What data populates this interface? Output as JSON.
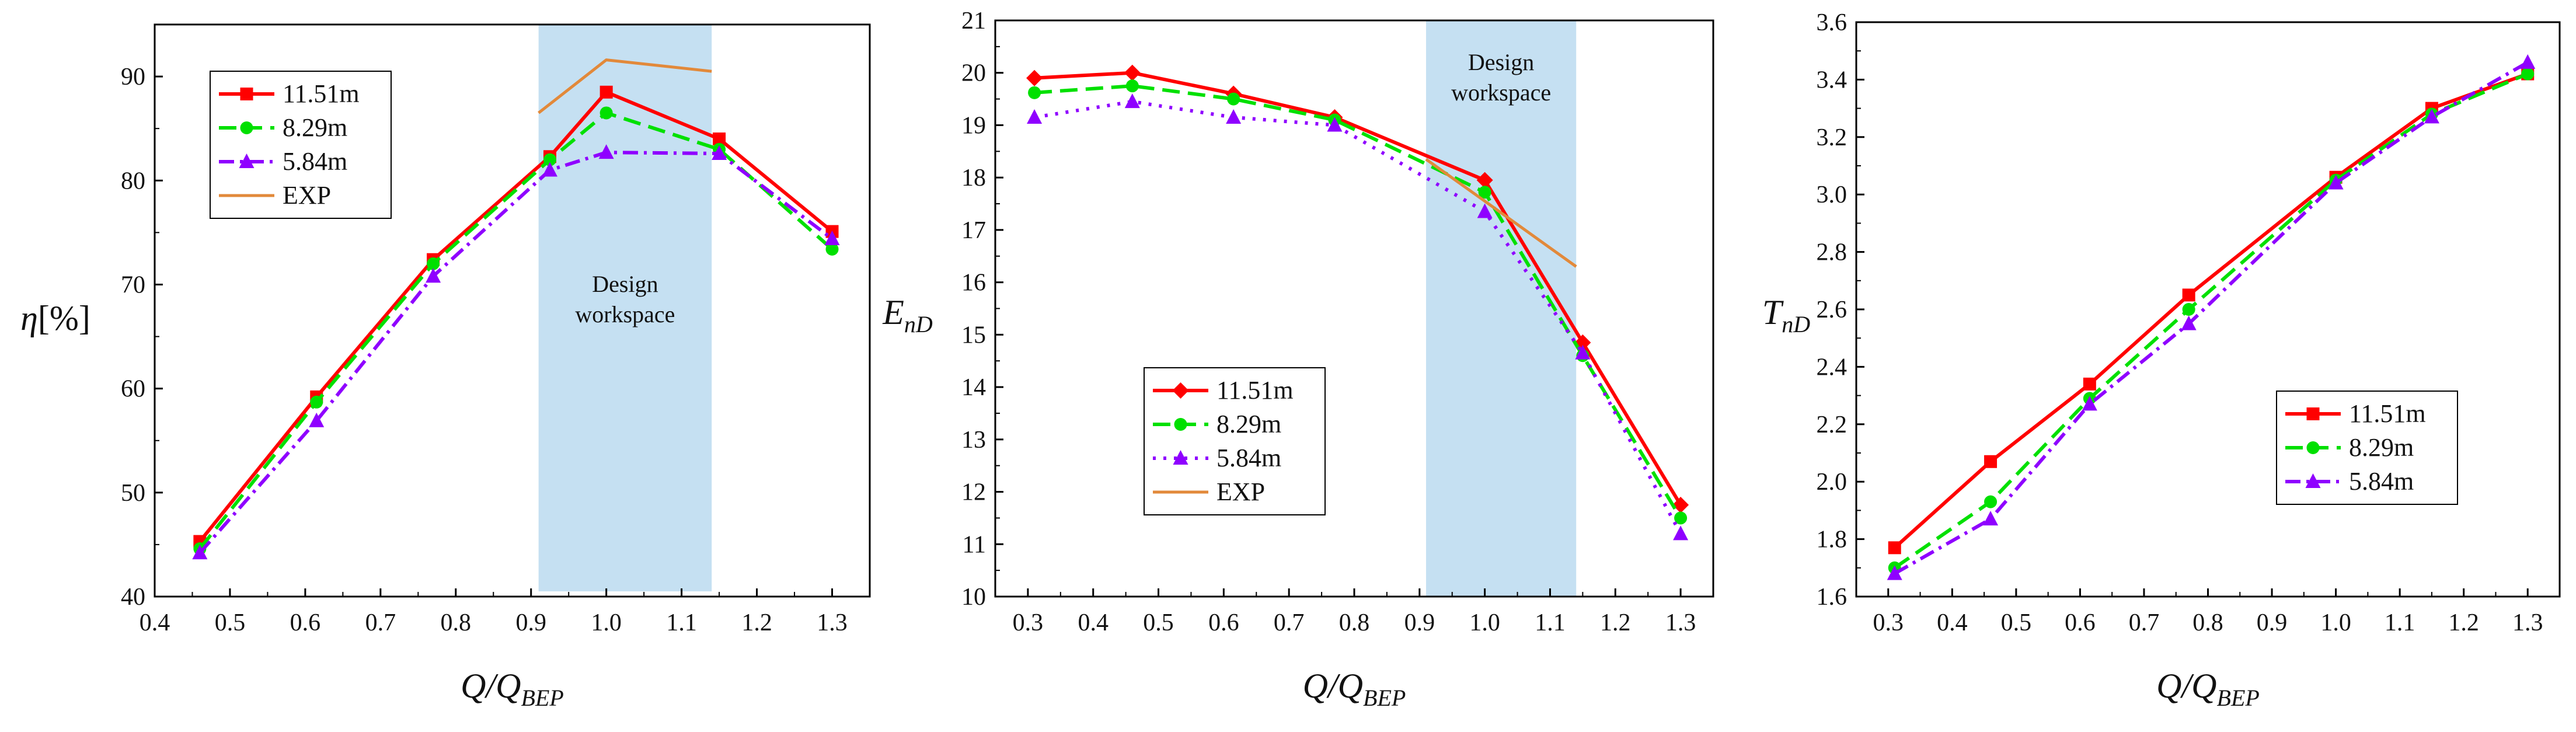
{
  "colors": {
    "s1": "#ff0000",
    "s2": "#00e000",
    "s3": "#8f00ff",
    "exp": "#e2893a",
    "band": "#c5e0f2"
  },
  "chart_data": [
    {
      "type": "line",
      "ylabel_main": "η",
      "ylabel_suffix": "[%]",
      "xlabel_main": "Q/Q",
      "xlabel_sub": "BEP",
      "xlim": [
        0.4,
        1.35
      ],
      "ylim": [
        40,
        95
      ],
      "xticks": [
        0.4,
        0.5,
        0.6,
        0.7,
        0.8,
        0.9,
        1.0,
        1.1,
        1.2,
        1.3
      ],
      "xtick_labels": [
        "0.4",
        "0.5",
        "0.6",
        "0.7",
        "0.8",
        "0.9",
        "1.0",
        "1.1",
        "1.2",
        "1.3"
      ],
      "yticks": [
        40,
        50,
        60,
        70,
        80,
        90
      ],
      "ytick_labels": [
        "40",
        "50",
        "60",
        "70",
        "80",
        "90"
      ],
      "band": {
        "x0": 0.91,
        "x1": 1.14,
        "y0": 40.5,
        "y1": 95,
        "label_lines": [
          "Design",
          "workspace"
        ]
      },
      "legend_position": "top-left",
      "series": [
        {
          "name": "11.51m",
          "marker": "square",
          "dash": "solid",
          "x": [
            0.46,
            0.615,
            0.77,
            0.925,
            1.0,
            1.15,
            1.3
          ],
          "y": [
            45.3,
            59.2,
            72.4,
            82.3,
            88.5,
            84.0,
            75.1
          ]
        },
        {
          "name": "8.29m",
          "marker": "circle",
          "dash": "dash",
          "x": [
            0.46,
            0.615,
            0.77,
            0.925,
            1.0,
            1.15,
            1.3
          ],
          "y": [
            44.6,
            58.7,
            72.0,
            82.0,
            86.5,
            83.0,
            73.4
          ]
        },
        {
          "name": "5.84m",
          "marker": "triangle",
          "dash": "dashdot",
          "x": [
            0.46,
            0.615,
            0.77,
            0.925,
            1.0,
            1.15,
            1.3
          ],
          "y": [
            44.2,
            56.9,
            70.8,
            81.0,
            82.7,
            82.6,
            74.4
          ]
        },
        {
          "name": "EXP",
          "marker": "none",
          "dash": "solid",
          "x": [
            0.91,
            1.0,
            1.14
          ],
          "y": [
            86.5,
            91.6,
            90.5
          ]
        }
      ]
    },
    {
      "type": "line",
      "ylabel_main": "E",
      "ylabel_sub": "nD",
      "xlabel_main": "Q/Q",
      "xlabel_sub": "BEP",
      "xlim": [
        0.25,
        1.35
      ],
      "ylim": [
        10,
        21
      ],
      "xticks": [
        0.3,
        0.4,
        0.5,
        0.6,
        0.7,
        0.8,
        0.9,
        1.0,
        1.1,
        1.2,
        1.3
      ],
      "xtick_labels": [
        "0.3",
        "0.4",
        "0.5",
        "0.6",
        "0.7",
        "0.8",
        "0.9",
        "1.0",
        "1.1",
        "1.2",
        "1.3"
      ],
      "yticks": [
        10,
        11,
        12,
        13,
        14,
        15,
        16,
        17,
        18,
        19,
        20,
        21
      ],
      "ytick_labels": [
        "10",
        "11",
        "12",
        "13",
        "14",
        "15",
        "16",
        "17",
        "18",
        "19",
        "20",
        "21"
      ],
      "band": {
        "x0": 0.91,
        "x1": 1.14,
        "y0": 10,
        "y1": 21,
        "label_lines": [
          "Design",
          "workspace"
        ]
      },
      "legend_position": "bottom-center",
      "series": [
        {
          "name": "11.51m",
          "marker": "diamond",
          "dash": "solid",
          "x": [
            0.31,
            0.46,
            0.615,
            0.77,
            1.0,
            1.15,
            1.3
          ],
          "y": [
            19.9,
            20.0,
            19.6,
            19.15,
            17.95,
            14.85,
            11.75
          ]
        },
        {
          "name": "8.29m",
          "marker": "circle",
          "dash": "dash",
          "x": [
            0.31,
            0.46,
            0.615,
            0.77,
            1.0,
            1.15,
            1.3
          ],
          "y": [
            19.62,
            19.75,
            19.5,
            19.1,
            17.72,
            14.6,
            11.5
          ]
        },
        {
          "name": "5.84m",
          "marker": "triangle",
          "dash": "dot",
          "x": [
            0.31,
            0.46,
            0.615,
            0.77,
            1.0,
            1.15,
            1.3
          ],
          "y": [
            19.15,
            19.45,
            19.15,
            19.0,
            17.35,
            14.65,
            11.2
          ]
        },
        {
          "name": "EXP",
          "marker": "none",
          "dash": "solid",
          "x": [
            0.91,
            1.0,
            1.14
          ],
          "y": [
            18.35,
            17.55,
            16.3
          ]
        }
      ]
    },
    {
      "type": "line",
      "ylabel_main": "T",
      "ylabel_sub": "nD",
      "xlabel_main": "Q/Q",
      "xlabel_sub": "BEP",
      "xlim": [
        0.25,
        1.35
      ],
      "ylim": [
        1.6,
        3.6
      ],
      "xticks": [
        0.3,
        0.4,
        0.5,
        0.6,
        0.7,
        0.8,
        0.9,
        1.0,
        1.1,
        1.2,
        1.3
      ],
      "xtick_labels": [
        "0.3",
        "0.4",
        "0.5",
        "0.6",
        "0.7",
        "0.8",
        "0.9",
        "1.0",
        "1.1",
        "1.2",
        "1.3"
      ],
      "yticks": [
        1.6,
        1.8,
        2.0,
        2.2,
        2.4,
        2.6,
        2.8,
        3.0,
        3.2,
        3.4,
        3.6
      ],
      "ytick_labels": [
        "1.6",
        "1.8",
        "2.0",
        "2.2",
        "2.4",
        "2.6",
        "2.8",
        "3.0",
        "3.2",
        "3.4",
        "3.6"
      ],
      "band": null,
      "legend_position": "right",
      "series": [
        {
          "name": "11.51m",
          "marker": "square",
          "dash": "solid",
          "x": [
            0.31,
            0.46,
            0.615,
            0.77,
            1.0,
            1.15,
            1.3
          ],
          "y": [
            1.77,
            2.07,
            2.34,
            2.65,
            3.06,
            3.3,
            3.42
          ]
        },
        {
          "name": "8.29m",
          "marker": "circle",
          "dash": "dash",
          "x": [
            0.31,
            0.46,
            0.615,
            0.77,
            1.0,
            1.15,
            1.3
          ],
          "y": [
            1.7,
            1.93,
            2.29,
            2.6,
            3.05,
            3.28,
            3.42
          ]
        },
        {
          "name": "5.84m",
          "marker": "triangle",
          "dash": "dashdot",
          "x": [
            0.31,
            0.46,
            0.615,
            0.77,
            1.0,
            1.15,
            1.3
          ],
          "y": [
            1.68,
            1.87,
            2.27,
            2.55,
            3.04,
            3.27,
            3.46
          ]
        }
      ]
    }
  ]
}
